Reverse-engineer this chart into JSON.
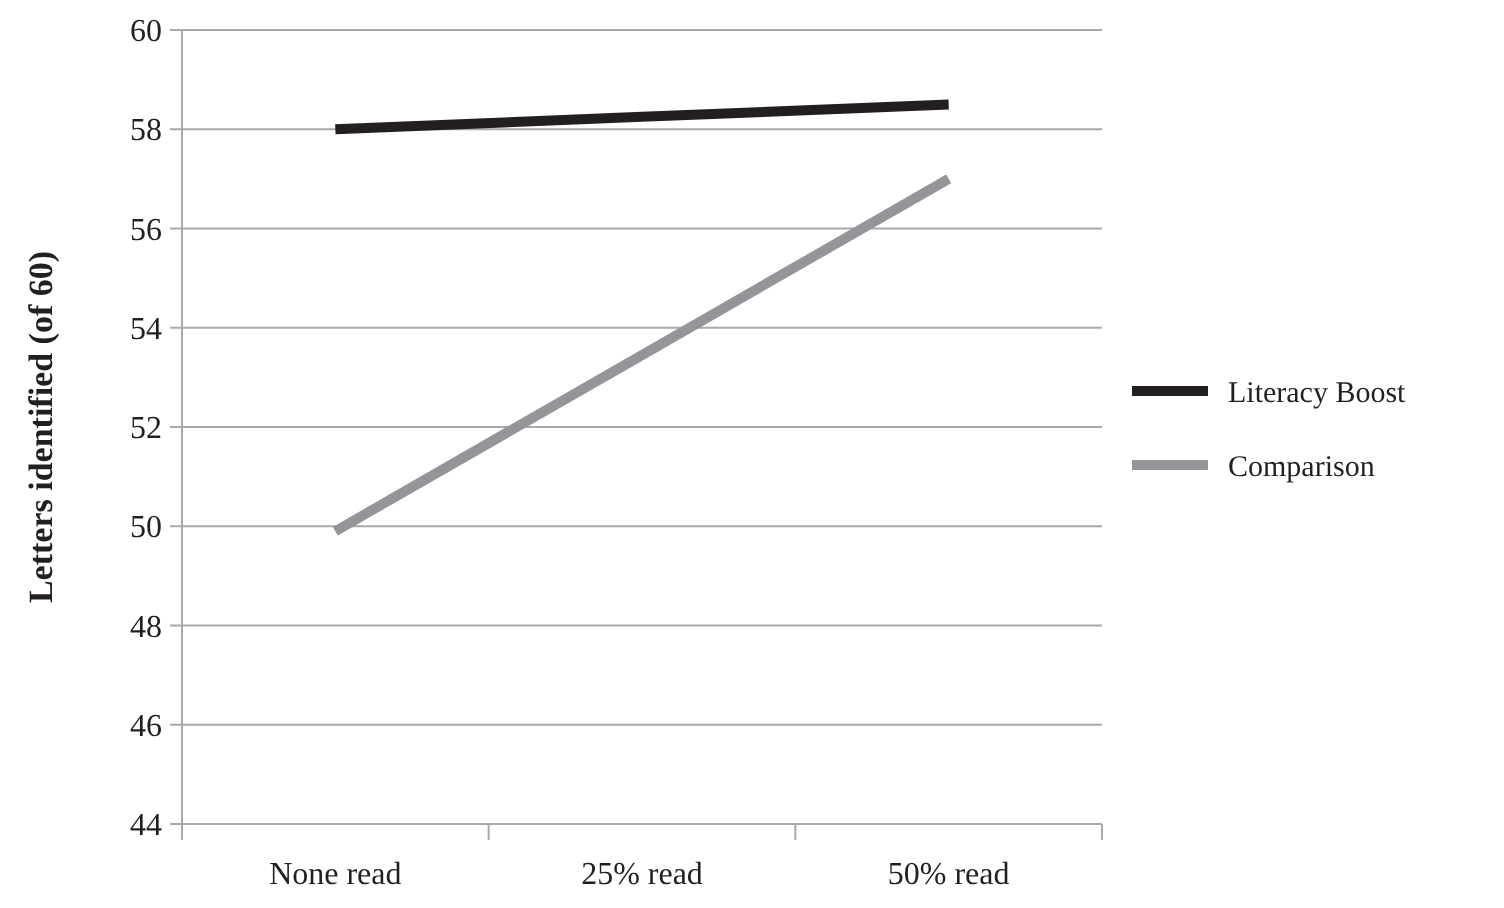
{
  "chart_data": {
    "type": "line",
    "ylabel": "Letters identified (of 60)",
    "categories": [
      "None read",
      "25% read",
      "50% read"
    ],
    "series": [
      {
        "name": "Literacy Boost",
        "color": "#231f20",
        "values": [
          58.0,
          58.25,
          58.5
        ]
      },
      {
        "name": "Comparison",
        "color": "#939598",
        "values": [
          49.9,
          53.45,
          57.0
        ]
      }
    ],
    "ylim": [
      44,
      60
    ],
    "yticks": [
      44,
      46,
      48,
      50,
      52,
      54,
      56,
      58,
      60
    ],
    "grid": "y",
    "legend": "right",
    "marker": "none",
    "line_style": "solid"
  }
}
